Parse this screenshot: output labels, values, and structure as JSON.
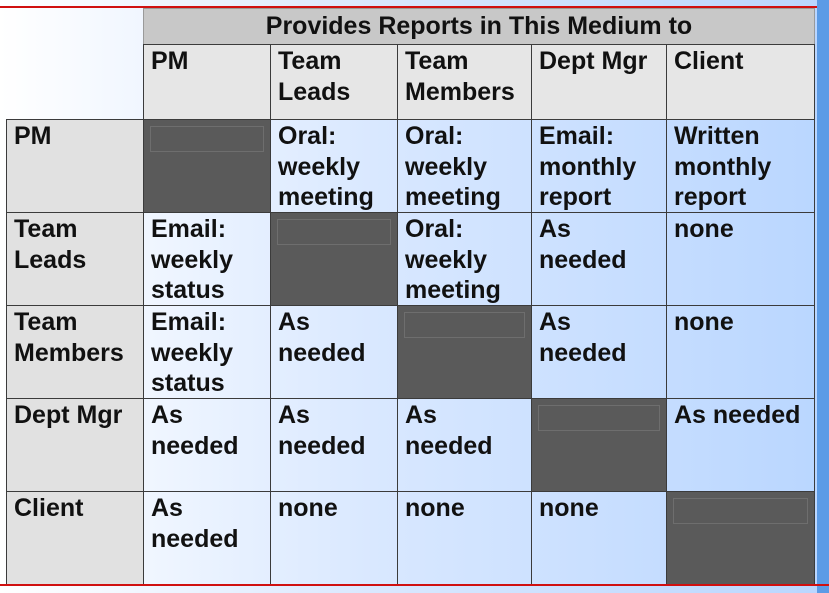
{
  "title": "Provides Reports in This Medium to",
  "columns": [
    "PM",
    "Team Leads",
    "Team Members",
    "Dept Mgr",
    "Client"
  ],
  "rows": [
    {
      "label": "PM",
      "cells": [
        "",
        "Oral: weekly meeting",
        "Oral: weekly meeting",
        "Email: monthly report",
        "Written monthly report"
      ]
    },
    {
      "label": "Team Leads",
      "cells": [
        "Email: weekly status",
        "",
        "Oral: weekly meeting",
        "As needed",
        "none"
      ]
    },
    {
      "label": "Team Members",
      "cells": [
        "Email: weekly status",
        "As needed",
        "",
        "As needed",
        "none"
      ]
    },
    {
      "label": "Dept Mgr",
      "cells": [
        "As needed",
        "As needed",
        "As needed",
        "",
        "As needed"
      ]
    },
    {
      "label": "Client",
      "cells": [
        "As needed",
        "none",
        "none",
        "none",
        ""
      ]
    }
  ],
  "colors": {
    "rule": "#d01010",
    "accent_bar": "#5b9be6",
    "blocked_cell": "#5a5a5a",
    "header_bg": "#e6e6e6"
  }
}
